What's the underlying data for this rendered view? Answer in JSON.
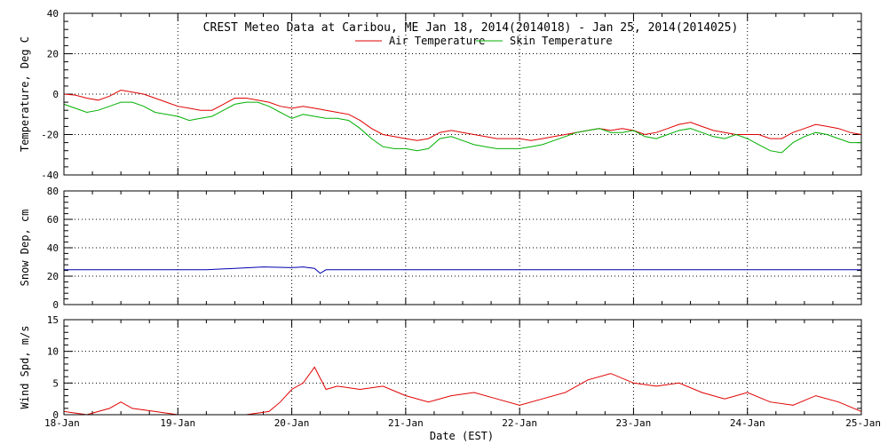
{
  "chart_data": {
    "type": "line",
    "title": "CREST Meteo Data at Caribou, ME   Jan 18, 2014(2014018) - Jan 25, 2014(2014025)",
    "xlabel": "Date (EST)",
    "x_categories": [
      "18-Jan",
      "19-Jan",
      "20-Jan",
      "21-Jan",
      "22-Jan",
      "23-Jan",
      "24-Jan",
      "25-Jan"
    ],
    "xlim_days": [
      0,
      7
    ],
    "grid": "dotted",
    "panels": [
      {
        "id": "temperature",
        "ylabel": "Temperature, Deg C",
        "ylim": [
          -40,
          40
        ],
        "yticks": [
          -40,
          -20,
          0,
          20,
          40
        ],
        "legend": "top-center",
        "series": [
          {
            "name": "Air Temperature",
            "color": "#e00000",
            "x": [
              0,
              0.1,
              0.2,
              0.3,
              0.4,
              0.5,
              0.6,
              0.7,
              0.8,
              0.9,
              1.0,
              1.1,
              1.2,
              1.3,
              1.4,
              1.5,
              1.6,
              1.7,
              1.8,
              1.9,
              2.0,
              2.1,
              2.2,
              2.3,
              2.4,
              2.5,
              2.6,
              2.7,
              2.8,
              2.9,
              3.0,
              3.1,
              3.2,
              3.3,
              3.4,
              3.5,
              3.6,
              3.7,
              3.8,
              3.9,
              4.0,
              4.1,
              4.2,
              4.3,
              4.4,
              4.5,
              4.6,
              4.7,
              4.8,
              4.9,
              5.0,
              5.1,
              5.2,
              5.3,
              5.4,
              5.5,
              5.6,
              5.7,
              5.8,
              5.9,
              6.0,
              6.1,
              6.2,
              6.3,
              6.4,
              6.5,
              6.6,
              6.7,
              6.8,
              6.9,
              7.0
            ],
            "values": [
              0,
              -0.5,
              -2,
              -3,
              -1,
              2,
              1,
              0,
              -2,
              -4,
              -6,
              -7,
              -8,
              -8,
              -5,
              -2,
              -2,
              -3,
              -4,
              -6,
              -7,
              -6,
              -7,
              -8,
              -9,
              -10,
              -13,
              -17,
              -20,
              -21,
              -22,
              -23,
              -22,
              -19,
              -18,
              -19,
              -20,
              -21,
              -22,
              -22,
              -22,
              -23,
              -22,
              -21,
              -20,
              -19,
              -18,
              -17,
              -18,
              -17,
              -18,
              -20,
              -19,
              -17,
              -15,
              -14,
              -16,
              -18,
              -19,
              -20,
              -20,
              -20,
              -22,
              -22,
              -19,
              -17,
              -15,
              -16,
              -17,
              -19,
              -20
            ]
          },
          {
            "name": "Skin Temperature",
            "color": "#00b000",
            "x": [
              0,
              0.1,
              0.2,
              0.3,
              0.4,
              0.5,
              0.6,
              0.7,
              0.8,
              0.9,
              1.0,
              1.1,
              1.2,
              1.3,
              1.4,
              1.5,
              1.6,
              1.7,
              1.8,
              1.9,
              2.0,
              2.1,
              2.2,
              2.3,
              2.4,
              2.5,
              2.6,
              2.7,
              2.8,
              2.9,
              3.0,
              3.1,
              3.2,
              3.3,
              3.4,
              3.5,
              3.6,
              3.7,
              3.8,
              3.9,
              4.0,
              4.1,
              4.2,
              4.3,
              4.4,
              4.5,
              4.6,
              4.7,
              4.8,
              4.9,
              5.0,
              5.1,
              5.2,
              5.3,
              5.4,
              5.5,
              5.6,
              5.7,
              5.8,
              5.9,
              6.0,
              6.1,
              6.2,
              6.3,
              6.4,
              6.5,
              6.6,
              6.7,
              6.8,
              6.9,
              7.0
            ],
            "values": [
              -5,
              -7,
              -9,
              -8,
              -6,
              -4,
              -4,
              -6,
              -9,
              -10,
              -11,
              -13,
              -12,
              -11,
              -8,
              -5,
              -4,
              -4,
              -6,
              -9,
              -12,
              -10,
              -11,
              -12,
              -12,
              -13,
              -17,
              -22,
              -26,
              -27,
              -27,
              -28,
              -27,
              -22,
              -21,
              -23,
              -25,
              -26,
              -27,
              -27,
              -27,
              -26,
              -25,
              -23,
              -21,
              -19,
              -18,
              -17,
              -19,
              -19,
              -18,
              -21,
              -22,
              -20,
              -18,
              -17,
              -19,
              -21,
              -22,
              -20,
              -22,
              -25,
              -28,
              -29,
              -24,
              -21,
              -19,
              -20,
              -22,
              -24,
              -24
            ]
          }
        ]
      },
      {
        "id": "snow",
        "ylabel": "Snow Dep, cm",
        "ylim": [
          0,
          80
        ],
        "yticks": [
          0,
          20,
          40,
          60,
          80
        ],
        "series": [
          {
            "name": "Snow Depth",
            "color": "#0000b0",
            "x": [
              0,
              0.25,
              0.5,
              0.75,
              1.0,
              1.25,
              1.5,
              1.75,
              2.0,
              2.1,
              2.2,
              2.25,
              2.3,
              2.5,
              2.75,
              3.0,
              3.25,
              3.5,
              3.75,
              4.0,
              4.25,
              4.5,
              4.75,
              5.0,
              5.25,
              5.5,
              5.75,
              6.0,
              6.25,
              6.5,
              6.75,
              7.0
            ],
            "values": [
              24.5,
              24.5,
              24.5,
              24.5,
              24.5,
              24.5,
              25.5,
              26.5,
              26,
              26.5,
              25.5,
              22,
              24.5,
              24.5,
              24.5,
              24.5,
              24.5,
              24.5,
              24.5,
              24.5,
              24.5,
              24.5,
              24.5,
              24.5,
              24.5,
              24.5,
              24.5,
              24.5,
              24.5,
              24.5,
              24.5,
              24.5
            ]
          }
        ]
      },
      {
        "id": "wind",
        "ylabel": "Wind Spd, m/s",
        "ylim": [
          0,
          15
        ],
        "yticks": [
          0,
          5,
          10,
          15
        ],
        "series": [
          {
            "name": "Wind Speed",
            "color": "#e00000",
            "x": [
              0,
              0.2,
              0.4,
              0.5,
              0.6,
              0.8,
              1.0,
              1.2,
              1.4,
              1.6,
              1.8,
              1.9,
              2.0,
              2.1,
              2.2,
              2.3,
              2.4,
              2.6,
              2.8,
              3.0,
              3.2,
              3.4,
              3.6,
              3.8,
              4.0,
              4.2,
              4.4,
              4.6,
              4.8,
              5.0,
              5.2,
              5.4,
              5.6,
              5.8,
              6.0,
              6.2,
              6.4,
              6.6,
              6.8,
              7.0
            ],
            "values": [
              0.5,
              0,
              1,
              2,
              1,
              0.5,
              0,
              0,
              0,
              0,
              0.5,
              2,
              4,
              5,
              7.5,
              4,
              4.5,
              4,
              4.5,
              3,
              2,
              3,
              3.5,
              2.5,
              1.5,
              2.5,
              3.5,
              5.5,
              6.5,
              5,
              4.5,
              5,
              3.5,
              2.5,
              3.5,
              2,
              1.5,
              3,
              2,
              0.5
            ]
          }
        ]
      }
    ]
  }
}
